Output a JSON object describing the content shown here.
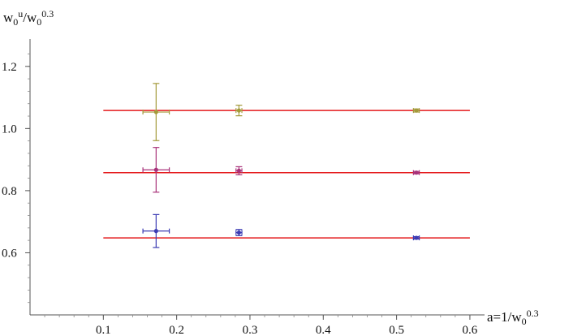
{
  "chart_data": {
    "type": "scatter",
    "xlabel": "a=1/w0^0.3",
    "ylabel": "w0^u/w0^0.3",
    "xlim": [
      0.0,
      0.62
    ],
    "ylim": [
      0.4,
      1.27
    ],
    "x_ticks": [
      "0.1",
      "0.2",
      "0.3",
      "0.4",
      "0.5",
      "0.6"
    ],
    "y_ticks": [
      "0.6",
      "0.8",
      "1.0",
      "1.2"
    ],
    "x_tick_values": [
      0.1,
      0.2,
      0.3,
      0.4,
      0.5,
      0.6
    ],
    "y_tick_values": [
      0.6,
      0.8,
      1.0,
      1.2
    ],
    "grid": false,
    "colors": {
      "fit_line": "#e41a1c",
      "series_1": "#3b3bb3",
      "series_2": "#a8327a",
      "series_3": "#a39a3a"
    },
    "series": [
      {
        "color": "#3b3bb3",
        "points": [
          {
            "x": 0.172,
            "y": 0.67,
            "xerr": 0.018,
            "yerr": 0.053
          },
          {
            "x": 0.285,
            "y": 0.665,
            "xerr": 0.004,
            "yerr": 0.01
          },
          {
            "x": 0.527,
            "y": 0.648,
            "xerr": 0.004,
            "yerr": 0.004
          }
        ],
        "fit": {
          "y": 0.648,
          "x_range": [
            0.1,
            0.6
          ]
        }
      },
      {
        "color": "#a8327a",
        "points": [
          {
            "x": 0.172,
            "y": 0.867,
            "xerr": 0.018,
            "yerr": 0.072
          },
          {
            "x": 0.285,
            "y": 0.864,
            "xerr": 0.004,
            "yerr": 0.013
          },
          {
            "x": 0.527,
            "y": 0.858,
            "xerr": 0.004,
            "yerr": 0.004
          }
        ],
        "fit": {
          "y": 0.858,
          "x_range": [
            0.1,
            0.6
          ]
        }
      },
      {
        "color": "#a39a3a",
        "points": [
          {
            "x": 0.172,
            "y": 1.053,
            "xerr": 0.018,
            "yerr": 0.092
          },
          {
            "x": 0.285,
            "y": 1.058,
            "xerr": 0.004,
            "yerr": 0.017
          },
          {
            "x": 0.527,
            "y": 1.058,
            "xerr": 0.004,
            "yerr": 0.005
          }
        ],
        "fit": {
          "y": 1.058,
          "x_range": [
            0.1,
            0.6
          ]
        }
      }
    ]
  }
}
